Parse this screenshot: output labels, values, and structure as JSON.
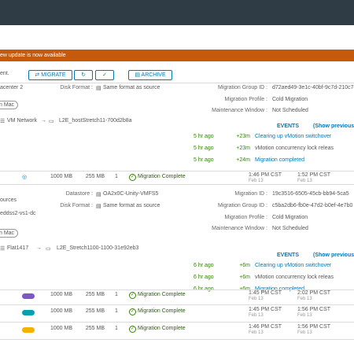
{
  "banner": "ew update is now available",
  "toolbar": {
    "label": "ent.",
    "migrate": "MIGRATE",
    "archive": "ARCHIVE"
  },
  "details": [
    {
      "left": [
        "acenter 2",
        "n Mac"
      ],
      "middle": [
        {
          "label": "Disk Format :",
          "value": "Same format as source"
        }
      ],
      "right": [
        {
          "label": "Migration Group ID :",
          "value": "d72aed49-3e1c-40bf-9c7d-210c7e"
        },
        {
          "label": "Migration Profile :",
          "value": "Cold Migration"
        },
        {
          "label": "Maintenance Window :",
          "value": "Not Scheduled"
        }
      ],
      "network": {
        "from": "VM Network",
        "to": "L2E_hostStretch11-700d2b8a"
      },
      "events_title": "EVENTS",
      "show_previous": "(Show previous 1",
      "events": [
        {
          "time": "5 hr ago",
          "offset": "+23m",
          "text": "Clearing up vMotion switchover"
        },
        {
          "time": "5 hr ago",
          "offset": "+23m",
          "text": "vMotion concurrency lock releas"
        },
        {
          "time": "5 hr ago",
          "offset": "+24m",
          "text": "Migration completed"
        }
      ]
    },
    {
      "left": [
        "ources",
        "eddss2-vs1-dc",
        "n Mac"
      ],
      "middle": [
        {
          "label": "Datastore :",
          "value": "OA2x0C-Unity-VMFS5"
        },
        {
          "label": "Disk Format :",
          "value": "Same format as source"
        }
      ],
      "right": [
        {
          "label": "Migration ID :",
          "value": "19c3516-6505-45cb-bb94-5ca5"
        },
        {
          "label": "Migration Group ID :",
          "value": "c5ba2db6-fb0e-47d2-b0ef-4e7b0"
        },
        {
          "label": "Migration Profile :",
          "value": "Cold Migration"
        },
        {
          "label": "Maintenance Window :",
          "value": "Not Scheduled"
        }
      ],
      "network": {
        "from": "Flat1417",
        "to": "L2E_Stretch1100-1100-31e92eb3"
      },
      "events_title": "EVENTS",
      "show_previous": "(Show previous 1",
      "events": [
        {
          "time": "6 hr ago",
          "offset": "+6m",
          "text": "Clearing up vMotion switchover"
        },
        {
          "time": "6 hr ago",
          "offset": "+6m",
          "text": "vMotion concurrency lock releas"
        },
        {
          "time": "6 hr ago",
          "offset": "+6m",
          "text": "Migration completed"
        }
      ]
    }
  ],
  "rows": [
    {
      "size": "1000 MB",
      "used": "255 MB",
      "count": "1",
      "status": "Migration Complete",
      "start": "1:46 PM CST",
      "start_date": "Feb 13",
      "end": "1:52 PM CST",
      "end_date": "Feb 13"
    },
    {
      "size": "1000 MB",
      "used": "255 MB",
      "count": "1",
      "status": "Migration Complete",
      "start": "1:45 PM CST",
      "start_date": "Feb 13",
      "end": "2:02 PM CST",
      "end_date": "Feb 13"
    },
    {
      "size": "1000 MB",
      "used": "255 MB",
      "count": "1",
      "status": "Migration Complete",
      "start": "1:45 PM CST",
      "start_date": "Feb 13",
      "end": "1:56 PM CST",
      "end_date": "Feb 13"
    },
    {
      "size": "1000 MB",
      "used": "255 MB",
      "count": "1",
      "status": "Migration Complete",
      "start": "1:46 PM CST",
      "start_date": "Feb 13",
      "end": "1:56 PM CST",
      "end_date": "Feb 13"
    }
  ]
}
